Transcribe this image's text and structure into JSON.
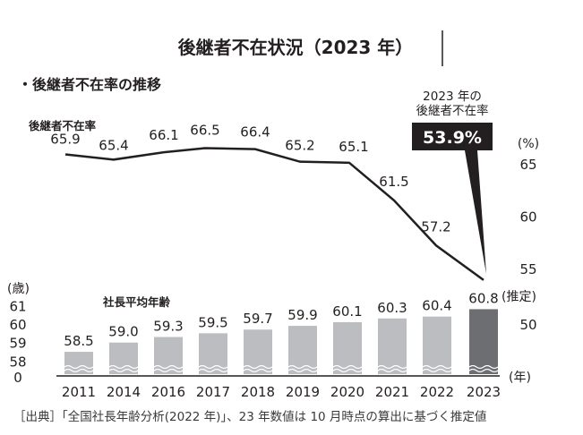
{
  "chart_data": [
    {
      "type": "line",
      "title": "後継者不在状況（2023 年）",
      "subtitle": "・後継者不在率の推移",
      "series_label": "後継者不在率",
      "unit_label": "(%)",
      "categories": [
        "2011",
        "2014",
        "2016",
        "2017",
        "2018",
        "2019",
        "2020",
        "2021",
        "2022",
        "2023"
      ],
      "values": [
        65.9,
        65.4,
        66.1,
        66.5,
        66.4,
        65.2,
        65.1,
        61.5,
        57.2,
        53.9
      ],
      "y_ticks": [
        "65",
        "60",
        "55",
        "50"
      ],
      "axis_side": "right",
      "callout": {
        "line1": "2023 年の",
        "line2": "後継者不在率",
        "value": "53.9%"
      }
    },
    {
      "type": "bar",
      "series_label": "社長平均年齢",
      "unit_label": "(歳)",
      "x_unit_label": "(年)",
      "categories": [
        "2011",
        "2014",
        "2016",
        "2017",
        "2018",
        "2019",
        "2020",
        "2021",
        "2022",
        "2023"
      ],
      "values": [
        58.5,
        59.0,
        59.3,
        59.5,
        59.7,
        59.9,
        60.1,
        60.3,
        60.4,
        60.8
      ],
      "value_labels": [
        "58.5",
        "59.0",
        "59.3",
        "59.5",
        "59.7",
        "59.9",
        "60.1",
        "60.3",
        "60.4",
        "60.8"
      ],
      "estimate_label": "(推定)",
      "y_ticks": [
        "61",
        "60",
        "59",
        "58",
        "0"
      ],
      "axis_break": true,
      "colors": {
        "bar": "#bcbdc0",
        "highlight": "#6d6e71"
      }
    }
  ],
  "source": "［出典］「全国社長年齢分析(2022 年)」、23 年数値は 10 月時点の算出に基づく推定値"
}
